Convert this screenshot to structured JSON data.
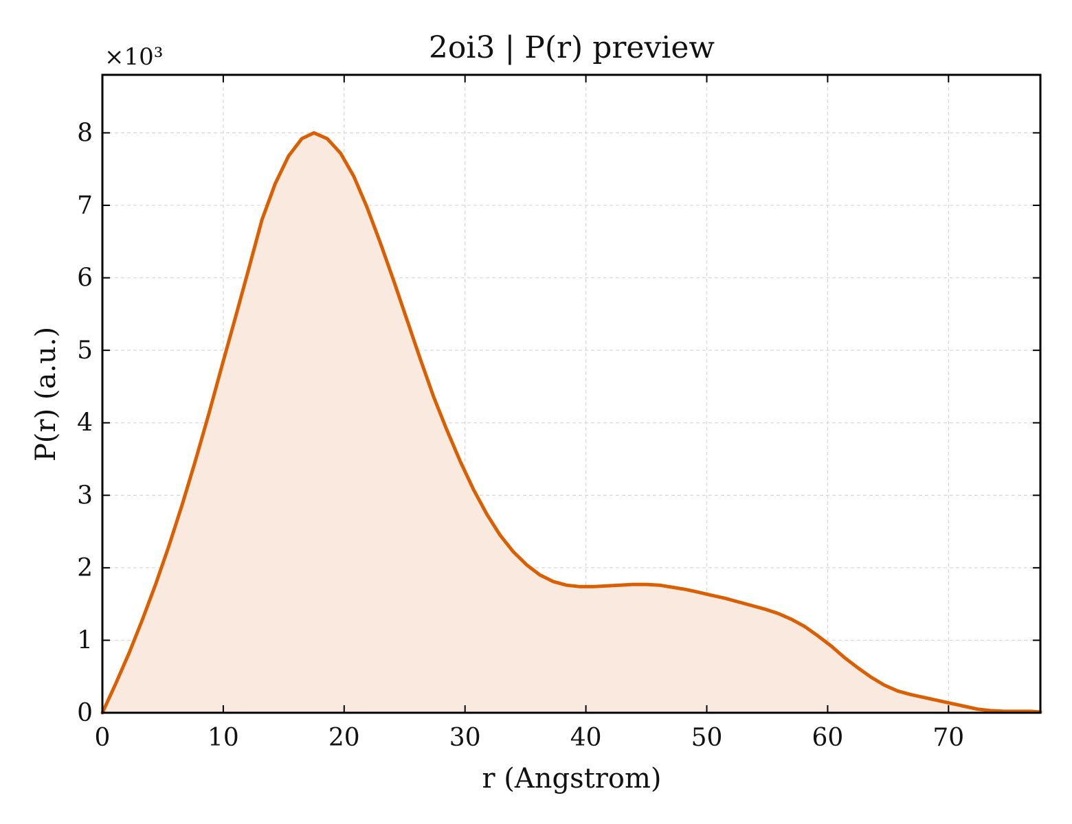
{
  "chart_data": {
    "type": "area",
    "title": "2oi3 | P(r) preview",
    "xlabel": "r (Angstrom)",
    "ylabel": "P(r) (a.u.)",
    "y_scale_label": "×10³",
    "y_multiplier": 1000,
    "xlim": [
      0,
      77.6
    ],
    "ylim": [
      0,
      8.8
    ],
    "x_ticks": [
      0,
      10,
      20,
      30,
      40,
      50,
      60,
      70
    ],
    "x_tick_labels": [
      "0",
      "10",
      "20",
      "30",
      "40",
      "50",
      "60",
      "70"
    ],
    "y_ticks": [
      0,
      1,
      2,
      3,
      4,
      5,
      6,
      7,
      8
    ],
    "y_tick_labels": [
      "0",
      "1",
      "2",
      "3",
      "4",
      "5",
      "6",
      "7",
      "8"
    ],
    "grid": true,
    "legend": false,
    "colors": {
      "line": "#d95f02",
      "fill": "#f9e9df",
      "grid": "#d9d9d9",
      "axes": "#000000"
    },
    "series": [
      {
        "x": [
          0,
          1.1,
          2.2,
          3.3,
          4.4,
          5.5,
          6.6,
          7.7,
          8.8,
          9.9,
          11.0,
          12.1,
          13.2,
          14.3,
          15.4,
          16.5,
          17.5,
          18.6,
          19.7,
          20.8,
          21.9,
          23.0,
          24.1,
          25.2,
          26.3,
          27.4,
          28.5,
          29.6,
          30.7,
          31.8,
          32.9,
          34.0,
          35.1,
          36.2,
          37.3,
          38.4,
          39.5,
          40.6,
          41.7,
          42.8,
          43.9,
          45.0,
          46.1,
          47.2,
          48.3,
          49.4,
          50.4,
          51.5,
          52.6,
          53.7,
          54.8,
          55.9,
          57.0,
          58.1,
          59.2,
          60.3,
          61.4,
          62.5,
          63.6,
          64.7,
          65.8,
          66.9,
          68.0,
          69.1,
          70.2,
          71.3,
          72.4,
          73.5,
          74.6,
          75.7,
          76.8,
          77.6
        ],
        "y": [
          0,
          0.4,
          0.82,
          1.28,
          1.77,
          2.3,
          2.87,
          3.48,
          4.12,
          4.79,
          5.45,
          6.12,
          6.8,
          7.3,
          7.68,
          7.92,
          8.0,
          7.92,
          7.72,
          7.4,
          6.97,
          6.48,
          5.96,
          5.42,
          4.88,
          4.36,
          3.9,
          3.47,
          3.08,
          2.74,
          2.45,
          2.22,
          2.04,
          1.9,
          1.81,
          1.76,
          1.74,
          1.74,
          1.75,
          1.76,
          1.77,
          1.77,
          1.76,
          1.73,
          1.7,
          1.66,
          1.62,
          1.58,
          1.53,
          1.48,
          1.43,
          1.37,
          1.29,
          1.19,
          1.06,
          0.92,
          0.76,
          0.62,
          0.49,
          0.38,
          0.3,
          0.25,
          0.21,
          0.17,
          0.13,
          0.09,
          0.05,
          0.03,
          0.02,
          0.02,
          0.02,
          0.01
        ]
      }
    ]
  }
}
